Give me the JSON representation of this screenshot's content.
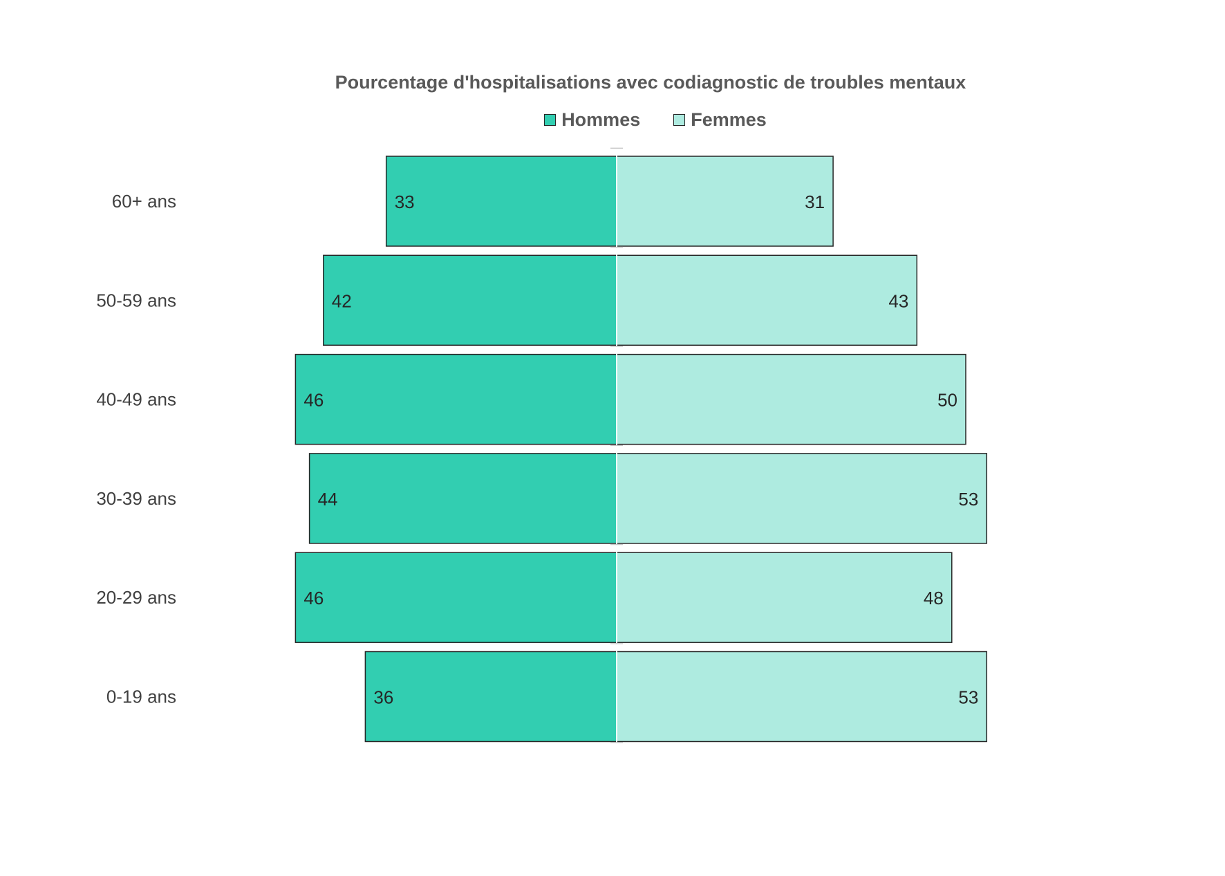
{
  "chart_data": {
    "type": "bar",
    "orientation": "horizontal",
    "layout": "population-pyramid",
    "title": "Pourcentage d'hospitalisations avec codiagnostic de troubles mentaux",
    "categories": [
      "60+ ans",
      "50-59 ans",
      "40-49 ans",
      "30-39 ans",
      "20-29 ans",
      "0-19 ans"
    ],
    "series": [
      {
        "name": "Hommes",
        "values": [
          33,
          42,
          46,
          44,
          46,
          36
        ],
        "color": "#32CEB1",
        "side": "left"
      },
      {
        "name": "Femmes",
        "values": [
          31,
          43,
          50,
          53,
          48,
          53
        ],
        "color": "#AEEBE0",
        "side": "right"
      }
    ],
    "legend_position": "top",
    "grid": false,
    "data_labels": true,
    "xlim": [
      0,
      60
    ]
  }
}
